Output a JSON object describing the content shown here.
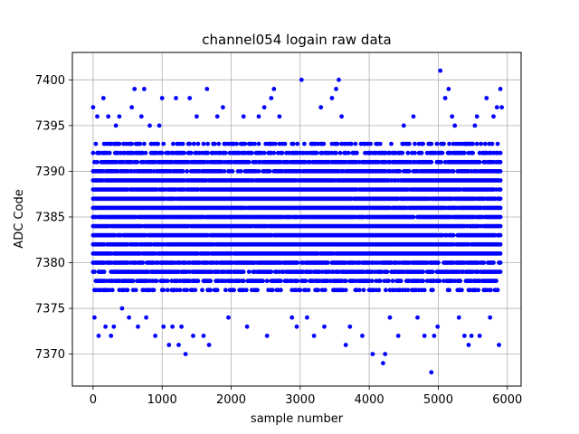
{
  "chart_data": {
    "type": "scatter",
    "title": "channel054 logain raw data",
    "xlabel": "sample number",
    "ylabel": "ADC Code",
    "xlim": [
      -300,
      6200
    ],
    "ylim": [
      7366.5,
      7403
    ],
    "xticks": [
      0,
      1000,
      2000,
      3000,
      4000,
      5000,
      6000
    ],
    "yticks": [
      7370,
      7375,
      7380,
      7385,
      7390,
      7395,
      7400
    ],
    "grid": true,
    "marker_color": "#0000ff",
    "series": [
      {
        "x_start": 0,
        "x_end": 5900,
        "x_step": 20,
        "band_min": 7377,
        "band_max": 7393,
        "outliers": [
          {
            "x": 0,
            "y": 7397
          },
          {
            "x": 20,
            "y": 7374
          },
          {
            "x": 60,
            "y": 7396
          },
          {
            "x": 80,
            "y": 7372
          },
          {
            "x": 150,
            "y": 7398
          },
          {
            "x": 180,
            "y": 7373
          },
          {
            "x": 220,
            "y": 7396
          },
          {
            "x": 260,
            "y": 7372
          },
          {
            "x": 300,
            "y": 7373
          },
          {
            "x": 330,
            "y": 7395
          },
          {
            "x": 380,
            "y": 7396
          },
          {
            "x": 420,
            "y": 7375
          },
          {
            "x": 520,
            "y": 7374
          },
          {
            "x": 560,
            "y": 7397
          },
          {
            "x": 600,
            "y": 7399
          },
          {
            "x": 650,
            "y": 7373
          },
          {
            "x": 700,
            "y": 7396
          },
          {
            "x": 740,
            "y": 7399
          },
          {
            "x": 770,
            "y": 7374
          },
          {
            "x": 820,
            "y": 7395
          },
          {
            "x": 900,
            "y": 7372
          },
          {
            "x": 960,
            "y": 7395
          },
          {
            "x": 1000,
            "y": 7398
          },
          {
            "x": 1020,
            "y": 7373
          },
          {
            "x": 1100,
            "y": 7371
          },
          {
            "x": 1150,
            "y": 7373
          },
          {
            "x": 1200,
            "y": 7398
          },
          {
            "x": 1240,
            "y": 7371
          },
          {
            "x": 1280,
            "y": 7373
          },
          {
            "x": 1340,
            "y": 7370
          },
          {
            "x": 1400,
            "y": 7398
          },
          {
            "x": 1450,
            "y": 7372
          },
          {
            "x": 1500,
            "y": 7396
          },
          {
            "x": 1600,
            "y": 7372
          },
          {
            "x": 1650,
            "y": 7399
          },
          {
            "x": 1680,
            "y": 7371
          },
          {
            "x": 1800,
            "y": 7396
          },
          {
            "x": 1880,
            "y": 7397
          },
          {
            "x": 1960,
            "y": 7374
          },
          {
            "x": 2180,
            "y": 7396
          },
          {
            "x": 2230,
            "y": 7373
          },
          {
            "x": 2400,
            "y": 7396
          },
          {
            "x": 2480,
            "y": 7397
          },
          {
            "x": 2520,
            "y": 7372
          },
          {
            "x": 2580,
            "y": 7398
          },
          {
            "x": 2620,
            "y": 7399
          },
          {
            "x": 2700,
            "y": 7396
          },
          {
            "x": 2880,
            "y": 7374
          },
          {
            "x": 2950,
            "y": 7373
          },
          {
            "x": 3020,
            "y": 7400
          },
          {
            "x": 3100,
            "y": 7374
          },
          {
            "x": 3200,
            "y": 7372
          },
          {
            "x": 3300,
            "y": 7397
          },
          {
            "x": 3350,
            "y": 7373
          },
          {
            "x": 3460,
            "y": 7398
          },
          {
            "x": 3520,
            "y": 7399
          },
          {
            "x": 3560,
            "y": 7400
          },
          {
            "x": 3600,
            "y": 7396
          },
          {
            "x": 3660,
            "y": 7371
          },
          {
            "x": 3720,
            "y": 7373
          },
          {
            "x": 3900,
            "y": 7372
          },
          {
            "x": 4050,
            "y": 7370
          },
          {
            "x": 4200,
            "y": 7369
          },
          {
            "x": 4230,
            "y": 7370
          },
          {
            "x": 4300,
            "y": 7374
          },
          {
            "x": 4420,
            "y": 7372
          },
          {
            "x": 4500,
            "y": 7395
          },
          {
            "x": 4640,
            "y": 7396
          },
          {
            "x": 4700,
            "y": 7374
          },
          {
            "x": 4800,
            "y": 7372
          },
          {
            "x": 4900,
            "y": 7368
          },
          {
            "x": 4940,
            "y": 7372
          },
          {
            "x": 4990,
            "y": 7373
          },
          {
            "x": 5030,
            "y": 7401
          },
          {
            "x": 5100,
            "y": 7398
          },
          {
            "x": 5150,
            "y": 7399
          },
          {
            "x": 5200,
            "y": 7396
          },
          {
            "x": 5240,
            "y": 7395
          },
          {
            "x": 5300,
            "y": 7374
          },
          {
            "x": 5380,
            "y": 7372
          },
          {
            "x": 5440,
            "y": 7371
          },
          {
            "x": 5480,
            "y": 7372
          },
          {
            "x": 5530,
            "y": 7395
          },
          {
            "x": 5560,
            "y": 7396
          },
          {
            "x": 5600,
            "y": 7372
          },
          {
            "x": 5700,
            "y": 7398
          },
          {
            "x": 5750,
            "y": 7374
          },
          {
            "x": 5800,
            "y": 7396
          },
          {
            "x": 5850,
            "y": 7397
          },
          {
            "x": 5880,
            "y": 7371
          },
          {
            "x": 5900,
            "y": 7399
          },
          {
            "x": 5920,
            "y": 7397
          }
        ]
      }
    ]
  }
}
